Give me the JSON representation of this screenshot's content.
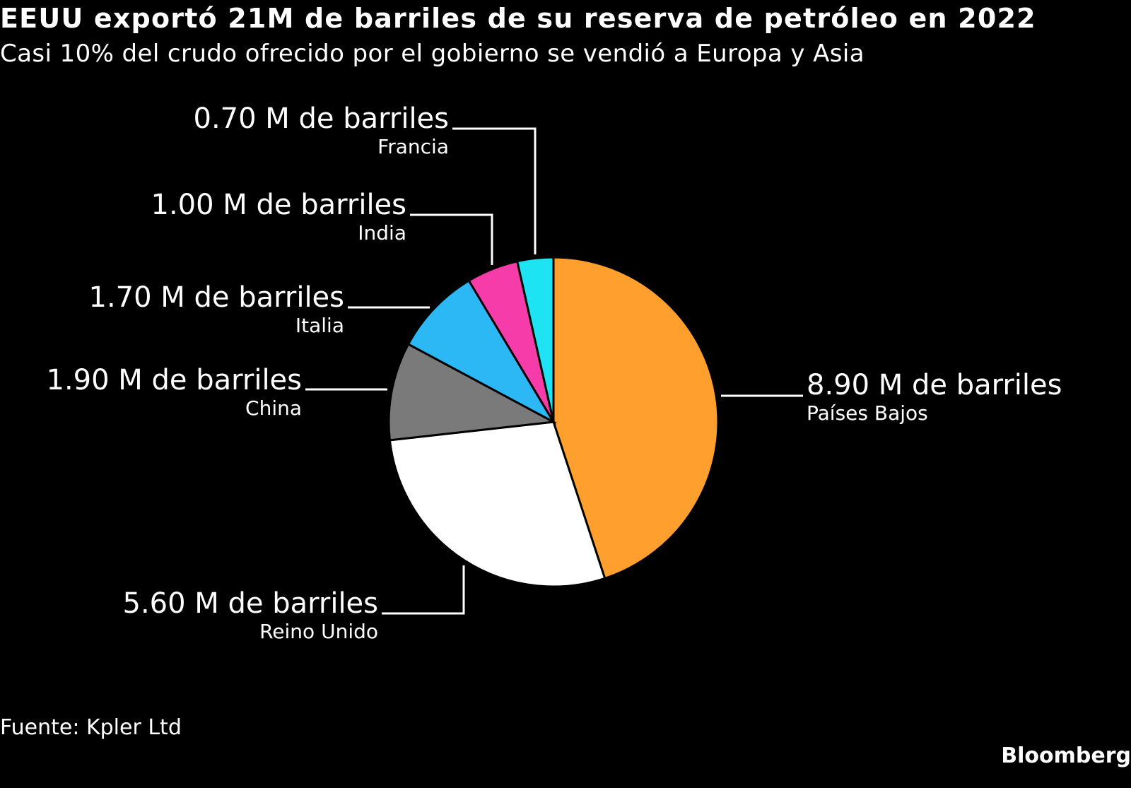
{
  "chart_data": {
    "type": "pie",
    "title": "EEUU exportó 21M de barriles de su reserva de petróleo en 2022",
    "subtitle": "Casi 10% del crudo ofrecido por el gobierno se vendió a Europa y Asia",
    "unit": "M de barriles",
    "slices": [
      {
        "label": "Países Bajos",
        "value": 8.9,
        "value_label": "8.90 M de barriles",
        "color": "#ffa02e"
      },
      {
        "label": "Reino Unido",
        "value": 5.6,
        "value_label": "5.60 M de barriles",
        "color": "#ffffff"
      },
      {
        "label": "China",
        "value": 1.9,
        "value_label": "1.90 M de barriles",
        "color": "#7a7a7a"
      },
      {
        "label": "Italia",
        "value": 1.7,
        "value_label": "1.70 M de barriles",
        "color": "#2bb8f5"
      },
      {
        "label": "India",
        "value": 1.0,
        "value_label": "1.00 M de barriles",
        "color": "#f53ca8"
      },
      {
        "label": "Francia",
        "value": 0.7,
        "value_label": "0.70 M de barriles",
        "color": "#1ee3f3"
      }
    ],
    "legend": "none"
  },
  "footer": {
    "source": "Fuente: Kpler Ltd",
    "brand": "Bloomberg"
  }
}
